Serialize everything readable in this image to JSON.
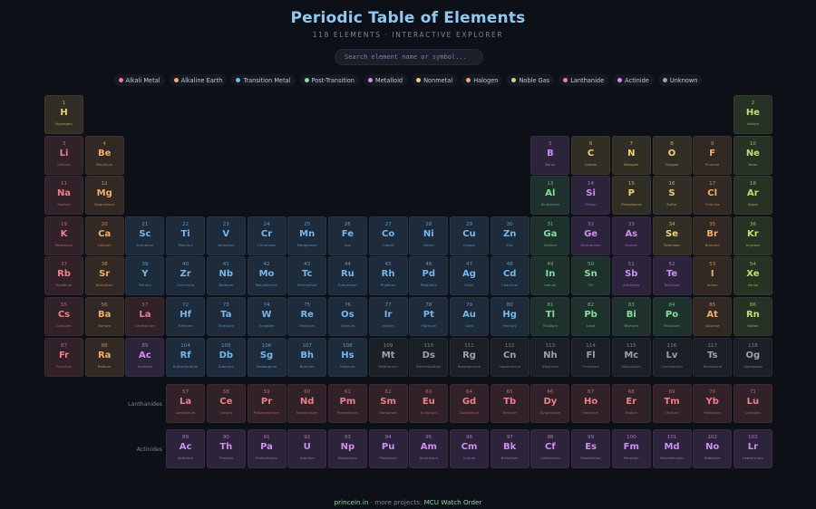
{
  "header": {
    "title": "Periodic Table of Elements",
    "subtitle": "118 ELEMENTS · INTERACTIVE EXPLORER"
  },
  "search": {
    "placeholder": "Search element name or symbol..."
  },
  "colors": {
    "alkali": "#f07f87",
    "alkaline": "#f6ad67",
    "transition": "#74b8f0",
    "post": "#7fe39a",
    "metalloid": "#d08ef0",
    "nonmetal": "#f0d470",
    "halogen": "#f6ad67",
    "noble": "#b4e56c",
    "lanthanide": "#f07f87",
    "actinide": "#d08ef0",
    "unknown": "#9aa3ad"
  },
  "legend": [
    {
      "label": "Alkali Metal",
      "cat": "alkali"
    },
    {
      "label": "Alkaline Earth",
      "cat": "alkaline"
    },
    {
      "label": "Transition Metal",
      "cat": "transition"
    },
    {
      "label": "Post-Transition",
      "cat": "post"
    },
    {
      "label": "Metalloid",
      "cat": "metalloid"
    },
    {
      "label": "Nonmetal",
      "cat": "nonmetal"
    },
    {
      "label": "Halogen",
      "cat": "halogen"
    },
    {
      "label": "Noble Gas",
      "cat": "noble"
    },
    {
      "label": "Lanthanide",
      "cat": "lanthanide"
    },
    {
      "label": "Actinide",
      "cat": "actinide"
    },
    {
      "label": "Unknown",
      "cat": "unknown"
    }
  ],
  "row_labels": {
    "lanthanides": "Lanthanides",
    "actinides": "Actinides"
  },
  "footer": {
    "site": "princein.in",
    "sep": " · more projects: ",
    "project": "MCU Watch Order"
  },
  "elements": [
    {
      "n": 1,
      "s": "H",
      "name": "Hydrogen",
      "cat": "nonmetal",
      "row": 1,
      "col": 1
    },
    {
      "n": 2,
      "s": "He",
      "name": "Helium",
      "cat": "noble",
      "row": 1,
      "col": 18
    },
    {
      "n": 3,
      "s": "Li",
      "name": "Lithium",
      "cat": "alkali",
      "row": 2,
      "col": 1
    },
    {
      "n": 4,
      "s": "Be",
      "name": "Beryllium",
      "cat": "alkaline",
      "row": 2,
      "col": 2
    },
    {
      "n": 5,
      "s": "B",
      "name": "Boron",
      "cat": "metalloid",
      "row": 2,
      "col": 13
    },
    {
      "n": 6,
      "s": "C",
      "name": "Carbon",
      "cat": "nonmetal",
      "row": 2,
      "col": 14
    },
    {
      "n": 7,
      "s": "N",
      "name": "Nitrogen",
      "cat": "nonmetal",
      "row": 2,
      "col": 15
    },
    {
      "n": 8,
      "s": "O",
      "name": "Oxygen",
      "cat": "nonmetal",
      "row": 2,
      "col": 16
    },
    {
      "n": 9,
      "s": "F",
      "name": "Fluorine",
      "cat": "halogen",
      "row": 2,
      "col": 17
    },
    {
      "n": 10,
      "s": "Ne",
      "name": "Neon",
      "cat": "noble",
      "row": 2,
      "col": 18
    },
    {
      "n": 11,
      "s": "Na",
      "name": "Sodium",
      "cat": "alkali",
      "row": 3,
      "col": 1
    },
    {
      "n": 12,
      "s": "Mg",
      "name": "Magnesium",
      "cat": "alkaline",
      "row": 3,
      "col": 2
    },
    {
      "n": 13,
      "s": "Al",
      "name": "Aluminium",
      "cat": "post",
      "row": 3,
      "col": 13
    },
    {
      "n": 14,
      "s": "Si",
      "name": "Silicon",
      "cat": "metalloid",
      "row": 3,
      "col": 14
    },
    {
      "n": 15,
      "s": "P",
      "name": "Phosphorus",
      "cat": "nonmetal",
      "row": 3,
      "col": 15
    },
    {
      "n": 16,
      "s": "S",
      "name": "Sulfur",
      "cat": "nonmetal",
      "row": 3,
      "col": 16
    },
    {
      "n": 17,
      "s": "Cl",
      "name": "Chlorine",
      "cat": "halogen",
      "row": 3,
      "col": 17
    },
    {
      "n": 18,
      "s": "Ar",
      "name": "Argon",
      "cat": "noble",
      "row": 3,
      "col": 18
    },
    {
      "n": 19,
      "s": "K",
      "name": "Potassium",
      "cat": "alkali",
      "row": 4,
      "col": 1
    },
    {
      "n": 20,
      "s": "Ca",
      "name": "Calcium",
      "cat": "alkaline",
      "row": 4,
      "col": 2
    },
    {
      "n": 21,
      "s": "Sc",
      "name": "Scandium",
      "cat": "transition",
      "row": 4,
      "col": 3
    },
    {
      "n": 22,
      "s": "Ti",
      "name": "Titanium",
      "cat": "transition",
      "row": 4,
      "col": 4
    },
    {
      "n": 23,
      "s": "V",
      "name": "Vanadium",
      "cat": "transition",
      "row": 4,
      "col": 5
    },
    {
      "n": 24,
      "s": "Cr",
      "name": "Chromium",
      "cat": "transition",
      "row": 4,
      "col": 6
    },
    {
      "n": 25,
      "s": "Mn",
      "name": "Manganese",
      "cat": "transition",
      "row": 4,
      "col": 7
    },
    {
      "n": 26,
      "s": "Fe",
      "name": "Iron",
      "cat": "transition",
      "row": 4,
      "col": 8
    },
    {
      "n": 27,
      "s": "Co",
      "name": "Cobalt",
      "cat": "transition",
      "row": 4,
      "col": 9
    },
    {
      "n": 28,
      "s": "Ni",
      "name": "Nickel",
      "cat": "transition",
      "row": 4,
      "col": 10
    },
    {
      "n": 29,
      "s": "Cu",
      "name": "Copper",
      "cat": "transition",
      "row": 4,
      "col": 11
    },
    {
      "n": 30,
      "s": "Zn",
      "name": "Zinc",
      "cat": "transition",
      "row": 4,
      "col": 12
    },
    {
      "n": 31,
      "s": "Ga",
      "name": "Gallium",
      "cat": "post",
      "row": 4,
      "col": 13
    },
    {
      "n": 32,
      "s": "Ge",
      "name": "Germanium",
      "cat": "metalloid",
      "row": 4,
      "col": 14
    },
    {
      "n": 33,
      "s": "As",
      "name": "Arsenic",
      "cat": "metalloid",
      "row": 4,
      "col": 15
    },
    {
      "n": 34,
      "s": "Se",
      "name": "Selenium",
      "cat": "nonmetal",
      "row": 4,
      "col": 16
    },
    {
      "n": 35,
      "s": "Br",
      "name": "Bromine",
      "cat": "halogen",
      "row": 4,
      "col": 17
    },
    {
      "n": 36,
      "s": "Kr",
      "name": "Krypton",
      "cat": "noble",
      "row": 4,
      "col": 18
    },
    {
      "n": 37,
      "s": "Rb",
      "name": "Rubidium",
      "cat": "alkali",
      "row": 5,
      "col": 1
    },
    {
      "n": 38,
      "s": "Sr",
      "name": "Strontium",
      "cat": "alkaline",
      "row": 5,
      "col": 2
    },
    {
      "n": 39,
      "s": "Y",
      "name": "Yttrium",
      "cat": "transition",
      "row": 5,
      "col": 3
    },
    {
      "n": 40,
      "s": "Zr",
      "name": "Zirconium",
      "cat": "transition",
      "row": 5,
      "col": 4
    },
    {
      "n": 41,
      "s": "Nb",
      "name": "Niobium",
      "cat": "transition",
      "row": 5,
      "col": 5
    },
    {
      "n": 42,
      "s": "Mo",
      "name": "Molybdenum",
      "cat": "transition",
      "row": 5,
      "col": 6
    },
    {
      "n": 43,
      "s": "Tc",
      "name": "Technetium",
      "cat": "transition",
      "row": 5,
      "col": 7
    },
    {
      "n": 44,
      "s": "Ru",
      "name": "Ruthenium",
      "cat": "transition",
      "row": 5,
      "col": 8
    },
    {
      "n": 45,
      "s": "Rh",
      "name": "Rhodium",
      "cat": "transition",
      "row": 5,
      "col": 9
    },
    {
      "n": 46,
      "s": "Pd",
      "name": "Palladium",
      "cat": "transition",
      "row": 5,
      "col": 10
    },
    {
      "n": 47,
      "s": "Ag",
      "name": "Silver",
      "cat": "transition",
      "row": 5,
      "col": 11
    },
    {
      "n": 48,
      "s": "Cd",
      "name": "Cadmium",
      "cat": "transition",
      "row": 5,
      "col": 12
    },
    {
      "n": 49,
      "s": "In",
      "name": "Indium",
      "cat": "post",
      "row": 5,
      "col": 13
    },
    {
      "n": 50,
      "s": "Sn",
      "name": "Tin",
      "cat": "post",
      "row": 5,
      "col": 14
    },
    {
      "n": 51,
      "s": "Sb",
      "name": "Antimony",
      "cat": "metalloid",
      "row": 5,
      "col": 15
    },
    {
      "n": 52,
      "s": "Te",
      "name": "Tellurium",
      "cat": "metalloid",
      "row": 5,
      "col": 16
    },
    {
      "n": 53,
      "s": "I",
      "name": "Iodine",
      "cat": "halogen",
      "row": 5,
      "col": 17
    },
    {
      "n": 54,
      "s": "Xe",
      "name": "Xenon",
      "cat": "noble",
      "row": 5,
      "col": 18
    },
    {
      "n": 55,
      "s": "Cs",
      "name": "Caesium",
      "cat": "alkali",
      "row": 6,
      "col": 1
    },
    {
      "n": 56,
      "s": "Ba",
      "name": "Barium",
      "cat": "alkaline",
      "row": 6,
      "col": 2
    },
    {
      "n": 57,
      "s": "La",
      "name": "Lanthanum",
      "cat": "lanthanide",
      "row": 6,
      "col": 3
    },
    {
      "n": 72,
      "s": "Hf",
      "name": "Hafnium",
      "cat": "transition",
      "row": 6,
      "col": 4
    },
    {
      "n": 73,
      "s": "Ta",
      "name": "Tantalum",
      "cat": "transition",
      "row": 6,
      "col": 5
    },
    {
      "n": 74,
      "s": "W",
      "name": "Tungsten",
      "cat": "transition",
      "row": 6,
      "col": 6
    },
    {
      "n": 75,
      "s": "Re",
      "name": "Rhenium",
      "cat": "transition",
      "row": 6,
      "col": 7
    },
    {
      "n": 76,
      "s": "Os",
      "name": "Osmium",
      "cat": "transition",
      "row": 6,
      "col": 8
    },
    {
      "n": 77,
      "s": "Ir",
      "name": "Iridium",
      "cat": "transition",
      "row": 6,
      "col": 9
    },
    {
      "n": 78,
      "s": "Pt",
      "name": "Platinum",
      "cat": "transition",
      "row": 6,
      "col": 10
    },
    {
      "n": 79,
      "s": "Au",
      "name": "Gold",
      "cat": "transition",
      "row": 6,
      "col": 11
    },
    {
      "n": 80,
      "s": "Hg",
      "name": "Mercury",
      "cat": "transition",
      "row": 6,
      "col": 12
    },
    {
      "n": 81,
      "s": "Tl",
      "name": "Thallium",
      "cat": "post",
      "row": 6,
      "col": 13
    },
    {
      "n": 82,
      "s": "Pb",
      "name": "Lead",
      "cat": "post",
      "row": 6,
      "col": 14
    },
    {
      "n": 83,
      "s": "Bi",
      "name": "Bismuth",
      "cat": "post",
      "row": 6,
      "col": 15
    },
    {
      "n": 84,
      "s": "Po",
      "name": "Polonium",
      "cat": "post",
      "row": 6,
      "col": 16
    },
    {
      "n": 85,
      "s": "At",
      "name": "Astatine",
      "cat": "halogen",
      "row": 6,
      "col": 17
    },
    {
      "n": 86,
      "s": "Rn",
      "name": "Radon",
      "cat": "noble",
      "row": 6,
      "col": 18
    },
    {
      "n": 87,
      "s": "Fr",
      "name": "Francium",
      "cat": "alkali",
      "row": 7,
      "col": 1
    },
    {
      "n": 88,
      "s": "Ra",
      "name": "Radium",
      "cat": "alkaline",
      "row": 7,
      "col": 2
    },
    {
      "n": 89,
      "s": "Ac",
      "name": "Actinium",
      "cat": "actinide",
      "row": 7,
      "col": 3
    },
    {
      "n": 104,
      "s": "Rf",
      "name": "Rutherfordium",
      "cat": "transition",
      "row": 7,
      "col": 4
    },
    {
      "n": 105,
      "s": "Db",
      "name": "Dubnium",
      "cat": "transition",
      "row": 7,
      "col": 5
    },
    {
      "n": 106,
      "s": "Sg",
      "name": "Seaborgium",
      "cat": "transition",
      "row": 7,
      "col": 6
    },
    {
      "n": 107,
      "s": "Bh",
      "name": "Bohrium",
      "cat": "transition",
      "row": 7,
      "col": 7
    },
    {
      "n": 108,
      "s": "Hs",
      "name": "Hassium",
      "cat": "transition",
      "row": 7,
      "col": 8
    },
    {
      "n": 109,
      "s": "Mt",
      "name": "Meitnerium",
      "cat": "unknown",
      "row": 7,
      "col": 9
    },
    {
      "n": 110,
      "s": "Ds",
      "name": "Darmstadtium",
      "cat": "unknown",
      "row": 7,
      "col": 10
    },
    {
      "n": 111,
      "s": "Rg",
      "name": "Roentgenium",
      "cat": "unknown",
      "row": 7,
      "col": 11
    },
    {
      "n": 112,
      "s": "Cn",
      "name": "Copernicium",
      "cat": "unknown",
      "row": 7,
      "col": 12
    },
    {
      "n": 113,
      "s": "Nh",
      "name": "Nihonium",
      "cat": "unknown",
      "row": 7,
      "col": 13
    },
    {
      "n": 114,
      "s": "Fl",
      "name": "Flerovium",
      "cat": "unknown",
      "row": 7,
      "col": 14
    },
    {
      "n": 115,
      "s": "Mc",
      "name": "Moscovium",
      "cat": "unknown",
      "row": 7,
      "col": 15
    },
    {
      "n": 116,
      "s": "Lv",
      "name": "Livermorium",
      "cat": "unknown",
      "row": 7,
      "col": 16
    },
    {
      "n": 117,
      "s": "Ts",
      "name": "Tennessine",
      "cat": "unknown",
      "row": 7,
      "col": 17
    },
    {
      "n": 118,
      "s": "Og",
      "name": "Oganesson",
      "cat": "unknown",
      "row": 7,
      "col": 18
    },
    {
      "n": 57,
      "s": "La",
      "name": "Lanthanum",
      "cat": "lanthanide",
      "row": 8,
      "col": 4
    },
    {
      "n": 58,
      "s": "Ce",
      "name": "Cerium",
      "cat": "lanthanide",
      "row": 8,
      "col": 5
    },
    {
      "n": 59,
      "s": "Pr",
      "name": "Praseodymium",
      "cat": "lanthanide",
      "row": 8,
      "col": 6
    },
    {
      "n": 60,
      "s": "Nd",
      "name": "Neodymium",
      "cat": "lanthanide",
      "row": 8,
      "col": 7
    },
    {
      "n": 61,
      "s": "Pm",
      "name": "Promethium",
      "cat": "lanthanide",
      "row": 8,
      "col": 8
    },
    {
      "n": 62,
      "s": "Sm",
      "name": "Samarium",
      "cat": "lanthanide",
      "row": 8,
      "col": 9
    },
    {
      "n": 63,
      "s": "Eu",
      "name": "Europium",
      "cat": "lanthanide",
      "row": 8,
      "col": 10
    },
    {
      "n": 64,
      "s": "Gd",
      "name": "Gadolinium",
      "cat": "lanthanide",
      "row": 8,
      "col": 11
    },
    {
      "n": 65,
      "s": "Tb",
      "name": "Terbium",
      "cat": "lanthanide",
      "row": 8,
      "col": 12
    },
    {
      "n": 66,
      "s": "Dy",
      "name": "Dysprosium",
      "cat": "lanthanide",
      "row": 8,
      "col": 13
    },
    {
      "n": 67,
      "s": "Ho",
      "name": "Holmium",
      "cat": "lanthanide",
      "row": 8,
      "col": 14
    },
    {
      "n": 68,
      "s": "Er",
      "name": "Erbium",
      "cat": "lanthanide",
      "row": 8,
      "col": 15
    },
    {
      "n": 69,
      "s": "Tm",
      "name": "Thulium",
      "cat": "lanthanide",
      "row": 8,
      "col": 16
    },
    {
      "n": 70,
      "s": "Yb",
      "name": "Ytterbium",
      "cat": "lanthanide",
      "row": 8,
      "col": 17
    },
    {
      "n": 71,
      "s": "Lu",
      "name": "Lutetium",
      "cat": "lanthanide",
      "row": 8,
      "col": 18
    },
    {
      "n": 89,
      "s": "Ac",
      "name": "Actinium",
      "cat": "actinide",
      "row": 9,
      "col": 4
    },
    {
      "n": 90,
      "s": "Th",
      "name": "Thorium",
      "cat": "actinide",
      "row": 9,
      "col": 5
    },
    {
      "n": 91,
      "s": "Pa",
      "name": "Protactinium",
      "cat": "actinide",
      "row": 9,
      "col": 6
    },
    {
      "n": 92,
      "s": "U",
      "name": "Uranium",
      "cat": "actinide",
      "row": 9,
      "col": 7
    },
    {
      "n": 93,
      "s": "Np",
      "name": "Neptunium",
      "cat": "actinide",
      "row": 9,
      "col": 8
    },
    {
      "n": 94,
      "s": "Pu",
      "name": "Plutonium",
      "cat": "actinide",
      "row": 9,
      "col": 9
    },
    {
      "n": 95,
      "s": "Am",
      "name": "Americium",
      "cat": "actinide",
      "row": 9,
      "col": 10
    },
    {
      "n": 96,
      "s": "Cm",
      "name": "Curium",
      "cat": "actinide",
      "row": 9,
      "col": 11
    },
    {
      "n": 97,
      "s": "Bk",
      "name": "Berkelium",
      "cat": "actinide",
      "row": 9,
      "col": 12
    },
    {
      "n": 98,
      "s": "Cf",
      "name": "Californium",
      "cat": "actinide",
      "row": 9,
      "col": 13
    },
    {
      "n": 99,
      "s": "Es",
      "name": "Einsteinium",
      "cat": "actinide",
      "row": 9,
      "col": 14
    },
    {
      "n": 100,
      "s": "Fm",
      "name": "Fermium",
      "cat": "actinide",
      "row": 9,
      "col": 15
    },
    {
      "n": 101,
      "s": "Md",
      "name": "Mendelevium",
      "cat": "actinide",
      "row": 9,
      "col": 16
    },
    {
      "n": 102,
      "s": "No",
      "name": "Nobelium",
      "cat": "actinide",
      "row": 9,
      "col": 17
    },
    {
      "n": 103,
      "s": "Lr",
      "name": "Lawrencium",
      "cat": "actinide",
      "row": 9,
      "col": 18
    }
  ]
}
